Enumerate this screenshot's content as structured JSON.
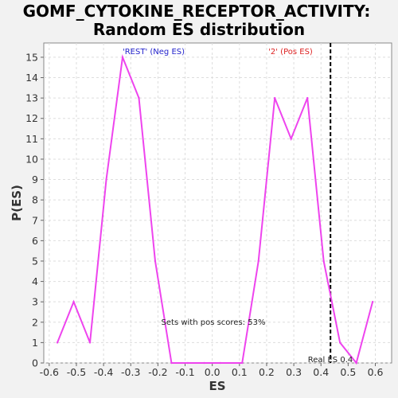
{
  "chart_data": {
    "type": "line",
    "title_line1": "GOMF_CYTOKINE_RECEPTOR_ACTIVITY:",
    "title_line2": "Random ES distribution",
    "xlabel": "ES",
    "ylabel": "P(ES)",
    "xlim": [
      -0.62,
      0.66
    ],
    "ylim": [
      0,
      15.7
    ],
    "x_ticks": [
      -0.6,
      -0.5,
      -0.4,
      -0.3,
      -0.2,
      -0.1,
      0.0,
      0.1,
      0.2,
      0.3,
      0.4,
      0.5,
      0.6
    ],
    "x_tick_labels": [
      "-0.6",
      "-0.5",
      "-0.4",
      "-0.3",
      "-0.2",
      "-0.1",
      "0.0",
      "0.1",
      "0.2",
      "0.3",
      "0.4",
      "0.5",
      "0.6"
    ],
    "y_ticks": [
      0,
      1,
      2,
      3,
      4,
      5,
      6,
      7,
      8,
      9,
      10,
      11,
      12,
      13,
      14,
      15
    ],
    "y_tick_labels": [
      "0",
      "1",
      "2",
      "3",
      "4",
      "5",
      "6",
      "7",
      "8",
      "9",
      "10",
      "11",
      "12",
      "13",
      "14",
      "15"
    ],
    "grid": true,
    "series": [
      {
        "color": "#ee44ee",
        "x": [
          -0.57,
          -0.51,
          -0.45,
          -0.39,
          -0.33,
          -0.27,
          -0.21,
          -0.15,
          -0.09,
          -0.03,
          0.03,
          0.11,
          0.17,
          0.23,
          0.29,
          0.35,
          0.41,
          0.47,
          0.53,
          0.59
        ],
        "y": [
          1,
          3,
          1,
          9,
          15,
          13,
          5,
          0,
          0,
          0,
          0,
          0,
          5,
          13,
          11,
          13,
          5,
          1,
          0,
          3
        ]
      }
    ],
    "vline": {
      "x": 0.435,
      "color": "#000000",
      "label": "Real ES 0.4"
    },
    "annotations": {
      "neg_label": "'REST' (Neg ES)",
      "neg_color": "#2222cc",
      "pos_label": "'2' (Pos ES)",
      "pos_color": "#dd2222",
      "pos_scores_text": "Sets with pos scores: 53%"
    }
  }
}
